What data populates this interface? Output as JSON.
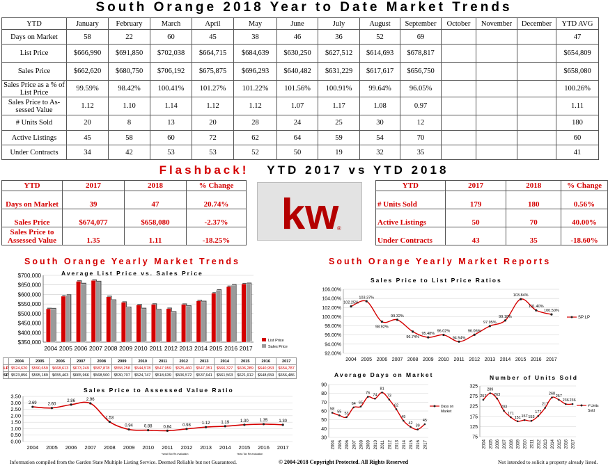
{
  "page_title": "South Orange 2018 Year to Date Market Trends",
  "ytd_table": {
    "columns": [
      "YTD",
      "January",
      "February",
      "March",
      "April",
      "May",
      "June",
      "July",
      "August",
      "September",
      "October",
      "November",
      "December",
      "YTD AVG"
    ],
    "rows": [
      {
        "label": "Days on Market",
        "values": [
          "58",
          "22",
          "60",
          "45",
          "38",
          "46",
          "36",
          "52",
          "69",
          "",
          "",
          "",
          "47"
        ]
      },
      {
        "label": "List Price",
        "values": [
          "$666,990",
          "$691,850",
          "$702,038",
          "$664,715",
          "$684,639",
          "$630,250",
          "$627,512",
          "$614,693",
          "$678,817",
          "",
          "",
          "",
          "$654,809"
        ]
      },
      {
        "label": "Sales Price",
        "values": [
          "$662,620",
          "$680,750",
          "$706,192",
          "$675,875",
          "$696,293",
          "$640,482",
          "$631,229",
          "$617,617",
          "$656,750",
          "",
          "",
          "",
          "$658,080"
        ]
      },
      {
        "label": "Sales Price as a % of List Price",
        "values": [
          "99.59%",
          "98.42%",
          "100.41%",
          "101.27%",
          "101.22%",
          "101.56%",
          "100.91%",
          "99.64%",
          "96.05%",
          "",
          "",
          "",
          "100.26%"
        ]
      },
      {
        "label": "Sales Price to As-sessed Value",
        "values": [
          "1.12",
          "1.10",
          "1.14",
          "1.12",
          "1.12",
          "1.07",
          "1.17",
          "1.08",
          "0.97",
          "",
          "",
          "",
          "1.11"
        ]
      },
      {
        "label": "# Units Sold",
        "values": [
          "20",
          "8",
          "13",
          "20",
          "28",
          "24",
          "25",
          "30",
          "12",
          "",
          "",
          "",
          "180"
        ]
      },
      {
        "label": "Active Listings",
        "values": [
          "45",
          "58",
          "60",
          "72",
          "62",
          "64",
          "59",
          "54",
          "70",
          "",
          "",
          "",
          "60"
        ]
      },
      {
        "label": "Under Contracts",
        "values": [
          "34",
          "42",
          "53",
          "53",
          "52",
          "50",
          "19",
          "32",
          "35",
          "",
          "",
          "",
          "41"
        ]
      }
    ]
  },
  "flashback": {
    "word1": "Flashback!",
    "word2": "YTD 2017",
    "vs": "vs",
    "word3": "YTD 2018"
  },
  "compare_left": {
    "headers": [
      "YTD",
      "2017",
      "2018",
      "% Change"
    ],
    "rows": [
      {
        "label": "Days on Market",
        "v2017": "39",
        "v2018": "47",
        "change": "20.74%"
      },
      {
        "label": "Sales Price",
        "v2017": "$674,077",
        "v2018": "$658,080",
        "change": "-2.37%"
      },
      {
        "label": "Sales Price to Assessed Value",
        "v2017": "1.35",
        "v2018": "1.11",
        "change": "-18.25%"
      }
    ]
  },
  "compare_right": {
    "headers": [
      "YTD",
      "2017",
      "2018",
      "% Change"
    ],
    "rows": [
      {
        "label": "# Units Sold",
        "v2017": "179",
        "v2018": "180",
        "change": "0.56%"
      },
      {
        "label": "Active Listings",
        "v2017": "50",
        "v2018": "70",
        "change": "40.00%"
      },
      {
        "label": "Under Contracts",
        "v2017": "43",
        "v2018": "35",
        "change": "-18.60%"
      }
    ]
  },
  "logo": {
    "text": "kw",
    "mark": "®",
    "color": "#b40000"
  },
  "section_titles": {
    "left": "South Orange Yearly Market Trends",
    "right": "South Orange Yearly Market Reports"
  },
  "colors": {
    "red": "#d40000",
    "gray": "#9a9a9a",
    "dark": "#000000"
  },
  "chart_data": [
    {
      "type": "bar",
      "title": "Average List Price vs. Sales Price",
      "categories": [
        "2004",
        "2005",
        "2006",
        "2007",
        "2008",
        "2009",
        "2010",
        "2011",
        "2012",
        "2013",
        "2014",
        "2015",
        "2016",
        "2017"
      ],
      "series": [
        {
          "name": "List Price",
          "short": "LP",
          "values": [
            524620,
            590659,
            668613,
            673249,
            587878,
            558258,
            544578,
            547959,
            525460,
            547351,
            566327,
            606289,
            640953,
            654787
          ],
          "labels": [
            "$524,620",
            "$590,659",
            "$668,613",
            "$673,249",
            "$587,878",
            "$558,258",
            "$544,578",
            "$547,959",
            "$525,460",
            "$547,351",
            "$566,327",
            "$606,289",
            "$640,953",
            "$654,787"
          ]
        },
        {
          "name": "Sales Price",
          "short": "SP",
          "values": [
            523856,
            595189,
            655463,
            665966,
            568500,
            530707,
            524747,
            518639,
            506572,
            537641,
            561563,
            621912,
            648659,
            656486
          ],
          "labels": [
            "$523,856",
            "$595,189",
            "$655,463",
            "$665,966",
            "$568,500",
            "$530,707",
            "$524,747",
            "$518,639",
            "$506,572",
            "$537,641",
            "$561,563",
            "$621,912",
            "$648,659",
            "$656,486"
          ]
        }
      ],
      "yticks": [
        "$350,000",
        "$400,000",
        "$450,000",
        "$500,000",
        "$550,000",
        "$600,000",
        "$650,000",
        "$700,000"
      ],
      "ylim": [
        350000,
        700000
      ]
    },
    {
      "type": "line",
      "title": "Sales Price to Assessed Value Ratio",
      "categories": [
        "2004",
        "2005",
        "2006",
        "2007",
        "2008",
        "2009",
        "2010",
        "2011",
        "2012",
        "2013",
        "2014",
        "2015",
        "2016",
        "2017"
      ],
      "values": [
        2.69,
        2.6,
        2.86,
        2.96,
        1.53,
        0.94,
        0.88,
        0.84,
        0.98,
        1.12,
        1.19,
        1.3,
        1.35,
        1.3
      ],
      "labels": [
        "2.69",
        "2.60",
        "2.86",
        "2.96",
        "1.53",
        "0.94",
        "0.88",
        "0.84",
        "0.98",
        "1.12",
        "1.19",
        "1.30",
        "1.35",
        "1.30"
      ],
      "yticks": [
        "0.00",
        "0.50",
        "1.00",
        "1.50",
        "2.00",
        "2.50",
        "3.00",
        "3.50"
      ],
      "ylim": [
        0,
        3.5
      ],
      "footnotes": [
        "*small Tax Re-evaluation",
        "*area Tax Re-evaluation"
      ]
    },
    {
      "type": "line",
      "title": "Sales Price to List Price Ratios",
      "categories": [
        "2004",
        "2005",
        "2006",
        "2007",
        "2008",
        "2009",
        "2010",
        "2011",
        "2012",
        "2013",
        "2014",
        "2015",
        "2016",
        "2017"
      ],
      "values": [
        102.25,
        103.37,
        98.92,
        99.32,
        96.74,
        95.48,
        96.02,
        94.54,
        96.06,
        97.95,
        99.18,
        103.84,
        101.4,
        100.5
      ],
      "labels": [
        "102.25%",
        "103.37%",
        "98.92%",
        "99.32%",
        "96.74%",
        "95.48%",
        "96.02%",
        "94.54%",
        "96.06%",
        "97.95%",
        "99.18%",
        "103.84%",
        "101.40%",
        "100.50%"
      ],
      "legend": "SP:LP",
      "yticks": [
        "92.00%",
        "94.00%",
        "96.00%",
        "98.00%",
        "100.00%",
        "102.00%",
        "104.00%",
        "106.00%"
      ],
      "ylim": [
        92,
        106
      ]
    },
    {
      "type": "line",
      "title": "Average Days on Market",
      "categories": [
        "2004",
        "2005",
        "2006",
        "2007",
        "2008",
        "2009",
        "2010",
        "2011",
        "2012",
        "2013",
        "2014",
        "2015",
        "2016",
        "2017"
      ],
      "values": [
        58,
        55,
        53,
        64,
        65,
        76,
        74,
        81,
        73,
        62,
        49,
        42,
        39,
        45
      ],
      "labels": [
        "58",
        "55",
        "53",
        "64",
        "65",
        "76",
        "74",
        "81",
        "73",
        "62",
        "49",
        "42",
        "39",
        "45"
      ],
      "legend": "Days on Market",
      "yticks": [
        "30",
        "40",
        "50",
        "60",
        "70",
        "80",
        "90"
      ],
      "ylim": [
        30,
        90
      ]
    },
    {
      "type": "line",
      "title": "Number of Units Sold",
      "categories": [
        "2004",
        "2005",
        "2006",
        "2007",
        "2008",
        "2009",
        "2010",
        "2011",
        "2012",
        "2013",
        "2014",
        "2015",
        "2016",
        "2017"
      ],
      "values": [
        257,
        289,
        263,
        203,
        171,
        151,
        157,
        153,
        177,
        217,
        268,
        257,
        236,
        236
      ],
      "labels": [
        "257",
        "289",
        "263",
        "203",
        "171",
        "151",
        "157",
        "153",
        "177",
        "217",
        "268",
        "257",
        "236",
        "236"
      ],
      "legend": "# Units Sold",
      "yticks": [
        "75",
        "125",
        "175",
        "225",
        "275",
        "325"
      ],
      "ylim": [
        75,
        325
      ]
    }
  ],
  "footer": {
    "left": "Information compiled from the Garden State Multiple Listing Service. Deemed Reliable but not Guaranteed.",
    "center": "© 2004-2018 Copyright Protected. All Rights Reserved",
    "right": "Not intended to solicit a property already listed."
  }
}
